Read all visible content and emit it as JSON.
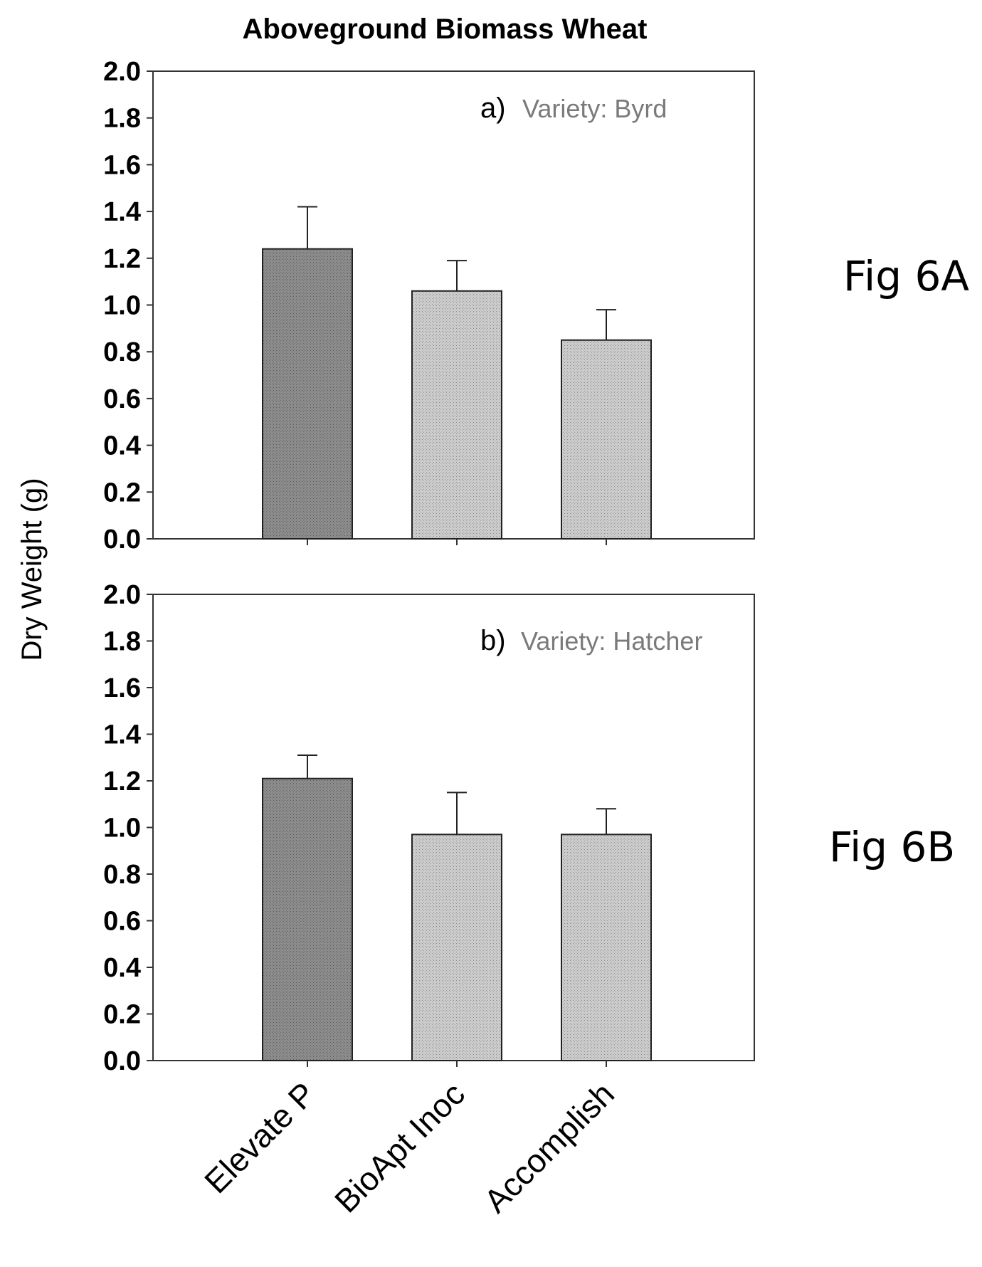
{
  "title": "Aboveground Biomass Wheat",
  "ylabel": "Dry Weight (g)",
  "side_labels": [
    "Fig 6A",
    "Fig 6B"
  ],
  "colors": {
    "bar_dark": "#8c8c8c",
    "bar_light": "#c8c8c8",
    "variety_text": "#7a7a7a"
  },
  "chart_data": [
    {
      "type": "bar",
      "panel_letter": "a)",
      "annotation": "Variety: Byrd",
      "categories": [
        "Elevate P",
        "BioApt Inoc",
        "Accomplish"
      ],
      "values": [
        1.24,
        1.06,
        0.85
      ],
      "error_upper": [
        1.42,
        1.19,
        0.98
      ],
      "ylim": [
        0.0,
        2.0
      ],
      "yticks": [
        "0.0",
        "0.2",
        "0.4",
        "0.6",
        "0.8",
        "1.0",
        "1.2",
        "1.4",
        "1.6",
        "1.8",
        "2.0"
      ],
      "ylabel": "Dry Weight (g)"
    },
    {
      "type": "bar",
      "panel_letter": "b)",
      "annotation": "Variety: Hatcher",
      "categories": [
        "Elevate P",
        "BioApt Inoc",
        "Accomplish"
      ],
      "values": [
        1.21,
        0.97,
        0.97
      ],
      "error_upper": [
        1.31,
        1.15,
        1.08
      ],
      "ylim": [
        0.0,
        2.0
      ],
      "yticks": [
        "0.0",
        "0.2",
        "0.4",
        "0.6",
        "0.8",
        "1.0",
        "1.2",
        "1.4",
        "1.6",
        "1.8",
        "2.0"
      ],
      "ylabel": "Dry Weight (g)"
    }
  ]
}
